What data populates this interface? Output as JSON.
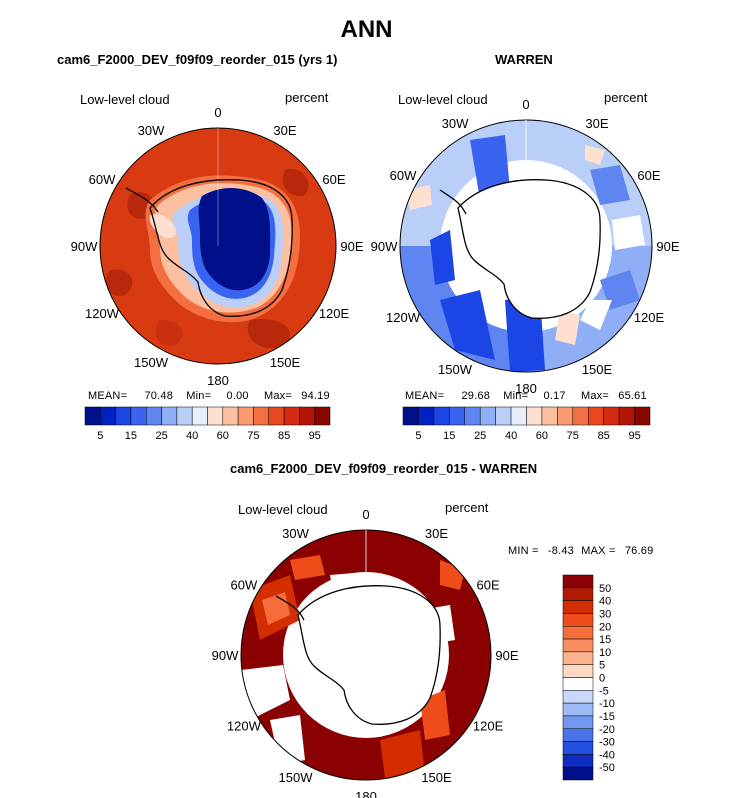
{
  "figure": {
    "title": "ANN"
  },
  "panels": {
    "top_left": {
      "title": "cam6_F2000_DEV_f09f09_reorder_015 (yrs 1)",
      "variable": "Low-level cloud",
      "units": "percent",
      "stats": {
        "mean_label": "MEAN=",
        "mean": "70.48",
        "min_label": "Min=",
        "min": "0.00",
        "max_label": "Max=",
        "max": "94.19"
      }
    },
    "top_right": {
      "title": "WARREN",
      "variable": "Low-level cloud",
      "units": "percent",
      "stats": {
        "mean_label": "MEAN=",
        "mean": "29.68",
        "min_label": "Min=",
        "min": "0.17",
        "max_label": "Max=",
        "max": "65.61"
      }
    },
    "bottom": {
      "title": "cam6_F2000_DEV_f09f09_reorder_015 - WARREN",
      "variable": "Low-level cloud",
      "units": "percent",
      "stats": {
        "min_label": "MIN =",
        "min": "-8.43",
        "max_label": "MAX =",
        "max": "76.69"
      }
    }
  },
  "map_labels": [
    "0",
    "30E",
    "60E",
    "90E",
    "120E",
    "150E",
    "180",
    "150W",
    "120W",
    "90W",
    "60W",
    "30W"
  ],
  "chart_data": [
    {
      "type": "heatmap",
      "projection": "south-polar-stereographic",
      "title": "cam6_F2000_DEV_f09f09_reorder_015 (yrs 1)",
      "variable": "Low-level cloud",
      "units": "percent",
      "colorbar": {
        "orientation": "horizontal",
        "tick_labels": [
          "5",
          "15",
          "25",
          "40",
          "60",
          "75",
          "85",
          "95"
        ],
        "colors": [
          "#000f8a",
          "#0020c0",
          "#1c45e6",
          "#3a63f0",
          "#5f86f0",
          "#8faef5",
          "#b9cff8",
          "#e6effb",
          "#fde0cf",
          "#fcc0a0",
          "#f99a70",
          "#f36f42",
          "#e9481f",
          "#d42b10",
          "#b31606",
          "#8c0400"
        ]
      },
      "stats": {
        "mean": 70.48,
        "min": 0.0,
        "max": 94.19
      }
    },
    {
      "type": "heatmap",
      "projection": "south-polar-stereographic",
      "title": "WARREN",
      "variable": "Low-level cloud",
      "units": "percent",
      "colorbar": {
        "orientation": "horizontal",
        "tick_labels": [
          "5",
          "15",
          "25",
          "40",
          "60",
          "75",
          "85",
          "95"
        ],
        "colors": [
          "#000f8a",
          "#0020c0",
          "#1c45e6",
          "#3a63f0",
          "#5f86f0",
          "#8faef5",
          "#b9cff8",
          "#e6effb",
          "#fde0cf",
          "#fcc0a0",
          "#f99a70",
          "#f36f42",
          "#e9481f",
          "#d42b10",
          "#b31606",
          "#8c0400"
        ]
      },
      "stats": {
        "mean": 29.68,
        "min": 0.17,
        "max": 65.61
      }
    },
    {
      "type": "heatmap",
      "projection": "south-polar-stereographic",
      "title": "cam6_F2000_DEV_f09f09_reorder_015 - WARREN",
      "variable": "Low-level cloud",
      "units": "percent",
      "colorbar": {
        "orientation": "vertical",
        "tick_labels": [
          "50",
          "40",
          "30",
          "20",
          "15",
          "10",
          "5",
          "0",
          "-5",
          "-10",
          "-15",
          "-20",
          "-30",
          "-40",
          "-50"
        ],
        "colors": [
          "#8b0000",
          "#b01a00",
          "#d42e00",
          "#ee4d1a",
          "#f46d3b",
          "#f98f60",
          "#fbb38f",
          "#fdd9c3",
          "#ffffff",
          "#c7d8fa",
          "#9dbaf5",
          "#7398f0",
          "#4a74ea",
          "#2450e0",
          "#0c2cc2",
          "#00108a"
        ]
      },
      "stats": {
        "min": -8.43,
        "max": 76.69
      }
    }
  ]
}
